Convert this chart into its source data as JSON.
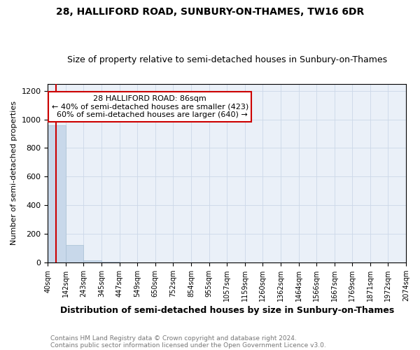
{
  "title": "28, HALLIFORD ROAD, SUNBURY-ON-THAMES, TW16 6DR",
  "subtitle": "Size of property relative to semi-detached houses in Sunbury-on-Thames",
  "xlabel": "Distribution of semi-detached houses by size in Sunbury-on-Thames",
  "ylabel": "Number of semi-detached properties",
  "footnote1": "Contains HM Land Registry data © Crown copyright and database right 2024.",
  "footnote2": "Contains public sector information licensed under the Open Government Licence v3.0.",
  "bin_edges": [
    40,
    142,
    243,
    345,
    447,
    549,
    650,
    752,
    854,
    955,
    1057,
    1159,
    1260,
    1362,
    1464,
    1566,
    1667,
    1769,
    1871,
    1972,
    2074
  ],
  "bin_heights": [
    960,
    120,
    15,
    2,
    1,
    0,
    0,
    0,
    0,
    0,
    0,
    0,
    0,
    0,
    0,
    0,
    0,
    0,
    0,
    0
  ],
  "bar_color": "#c8d8ea",
  "bar_edge_color": "#a8c0d4",
  "property_size": 86,
  "property_label": "28 HALLIFORD ROAD: 86sqm",
  "pct_smaller": 40,
  "n_smaller": 423,
  "pct_larger": 60,
  "n_larger": 640,
  "vline_color": "#cc0000",
  "annotation_box_color": "#cc0000",
  "ylim": [
    0,
    1250
  ],
  "yticks": [
    0,
    200,
    400,
    600,
    800,
    1000,
    1200
  ],
  "grid_color": "#ccd8e8",
  "bg_color": "#eaf0f8",
  "title_fontsize": 10,
  "subtitle_fontsize": 9,
  "ylabel_fontsize": 8,
  "xlabel_fontsize": 9,
  "tick_fontsize": 7,
  "annot_fontsize": 8
}
